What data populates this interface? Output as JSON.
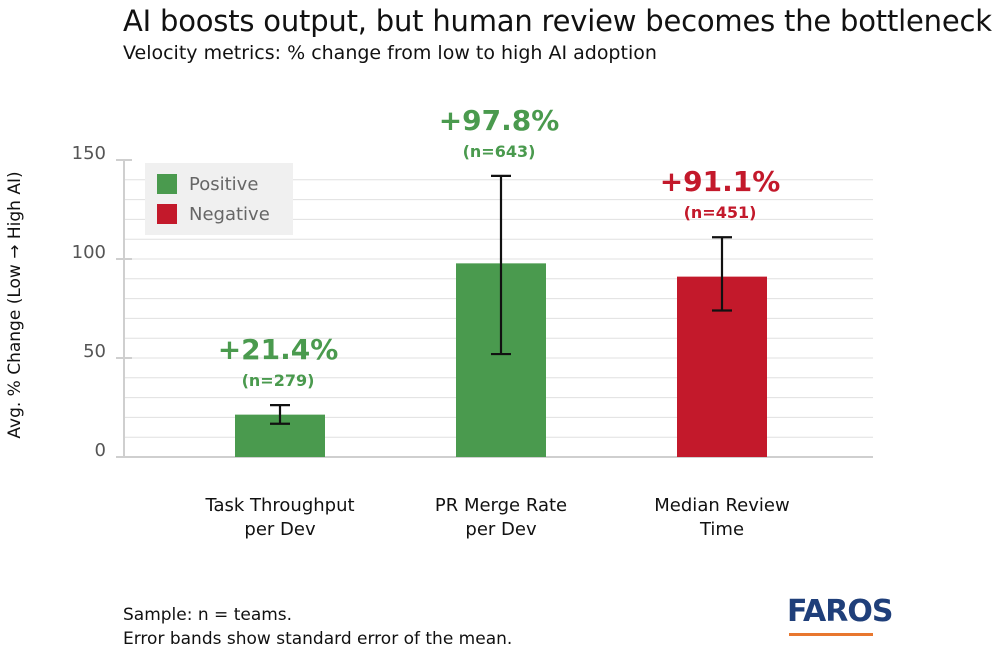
{
  "title": "AI boosts output, but human review becomes the bottleneck",
  "subtitle": "Velocity metrics: % change from low to high AI adoption",
  "colors": {
    "positive": "#4a9a4e",
    "negative": "#c3192b",
    "grid": "#e0e0e0",
    "axis": "#cfcfcf"
  },
  "legend": [
    {
      "label": "Positive",
      "color": "#4a9a4e"
    },
    {
      "label": "Negative",
      "color": "#c3192b"
    }
  ],
  "footer": {
    "line1": "Sample: n = teams.",
    "line2": "Error bands show standard error of the mean."
  },
  "logo": {
    "text": "FAROS"
  },
  "chart_data": {
    "type": "bar",
    "title": "AI boosts output, but human review becomes the bottleneck",
    "subtitle": "Velocity metrics: % change from low to high AI adoption",
    "ylabel": "Avg. % Change (Low → High AI)",
    "ylim": [
      0,
      150
    ],
    "yticks": [
      "0",
      "50",
      "100",
      "150"
    ],
    "grid": true,
    "legend_position": "top-left",
    "categories": [
      [
        "Task Throughput",
        "per Dev"
      ],
      [
        "PR Merge Rate",
        "per Dev"
      ],
      [
        "Median Review",
        "Time"
      ]
    ],
    "values": [
      21.4,
      97.8,
      91.1
    ],
    "error_low": [
      16.8,
      52.0,
      74.0
    ],
    "error_high": [
      26.2,
      142.0,
      111.0
    ],
    "sentiment": [
      "positive",
      "positive",
      "negative"
    ],
    "pct_labels": [
      "+21.4%",
      "+97.8%",
      "+91.1%"
    ],
    "n_labels": [
      "(n=279)",
      "(n=643)",
      "(n=451)"
    ]
  }
}
